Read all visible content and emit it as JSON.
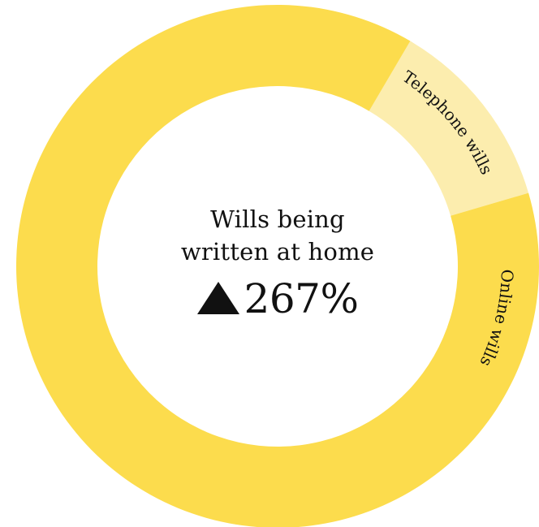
{
  "chart_data": {
    "type": "pie",
    "donut": true,
    "categories": [
      "Telephone wills",
      "Online wills"
    ],
    "values": [
      12,
      88
    ],
    "colors": [
      "#FCEDAE",
      "#FCDC4D"
    ],
    "center_title_line1": "Wills being",
    "center_title_line2": "written at home",
    "center_stat": "267%",
    "center_stat_icon": "up-triangle-icon",
    "legend": "none"
  }
}
